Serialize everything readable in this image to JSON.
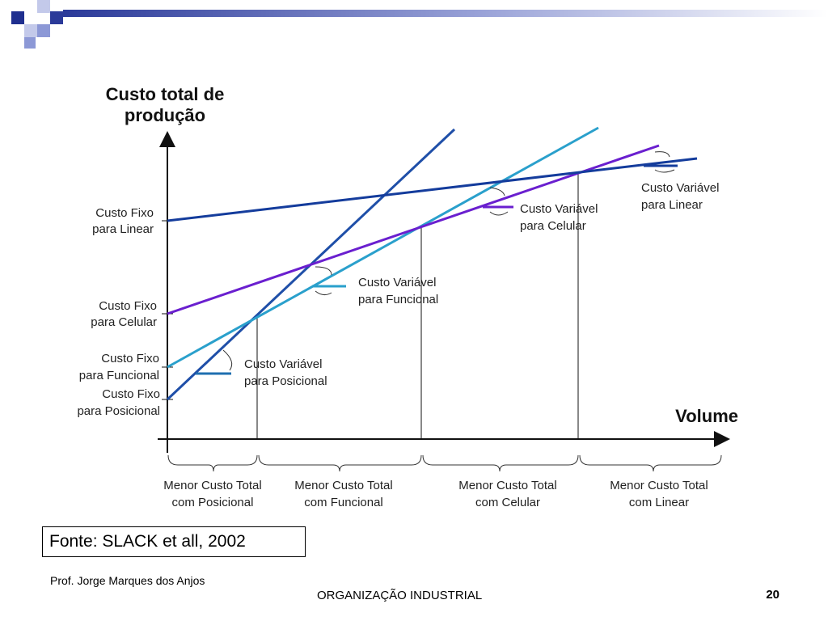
{
  "slide": {
    "source": "Fonte: SLACK et all, 2002",
    "author": "Prof. Jorge Marques dos Anjos",
    "footer_title": "ORGANIZAÇÃO INDUSTRIAL",
    "page_number": "20"
  },
  "colors": {
    "posicional": "#1f4fa8",
    "funcional": "#2aa0cc",
    "celular": "#6a1fcf",
    "linear": "#143c9c",
    "header_squares_dark": "#1f2f8f",
    "header_squares_light": "#8c98d6"
  },
  "chart_data": {
    "type": "line",
    "ylabel_lines": [
      "Custo total de",
      "produção"
    ],
    "xlabel": "Volume",
    "series": [
      {
        "name": "Posicional",
        "fixed_label_lines": [
          "Custo Fixo",
          "para Posicional"
        ],
        "variable_label_lines": [
          "Custo Variável",
          "para Posicional"
        ]
      },
      {
        "name": "Funcional",
        "fixed_label_lines": [
          "Custo Fixo",
          "para Funcional"
        ],
        "variable_label_lines": [
          "Custo Variável",
          "para Funcional"
        ]
      },
      {
        "name": "Celular",
        "fixed_label_lines": [
          "Custo Fixo",
          "para Celular"
        ],
        "variable_label_lines": [
          "Custo Variável",
          "para Celular"
        ]
      },
      {
        "name": "Linear",
        "fixed_label_lines": [
          "Custo Fixo",
          "para Linear"
        ],
        "variable_label_lines": [
          "Custo Variável",
          "para Linear"
        ]
      }
    ],
    "regions": [
      {
        "label_lines": [
          "Menor Custo Total",
          "com Posicional"
        ]
      },
      {
        "label_lines": [
          "Menor Custo Total",
          "com Funcional"
        ]
      },
      {
        "label_lines": [
          "Menor Custo Total",
          "com Celular"
        ]
      },
      {
        "label_lines": [
          "Menor Custo Total",
          "com Linear"
        ]
      }
    ]
  }
}
